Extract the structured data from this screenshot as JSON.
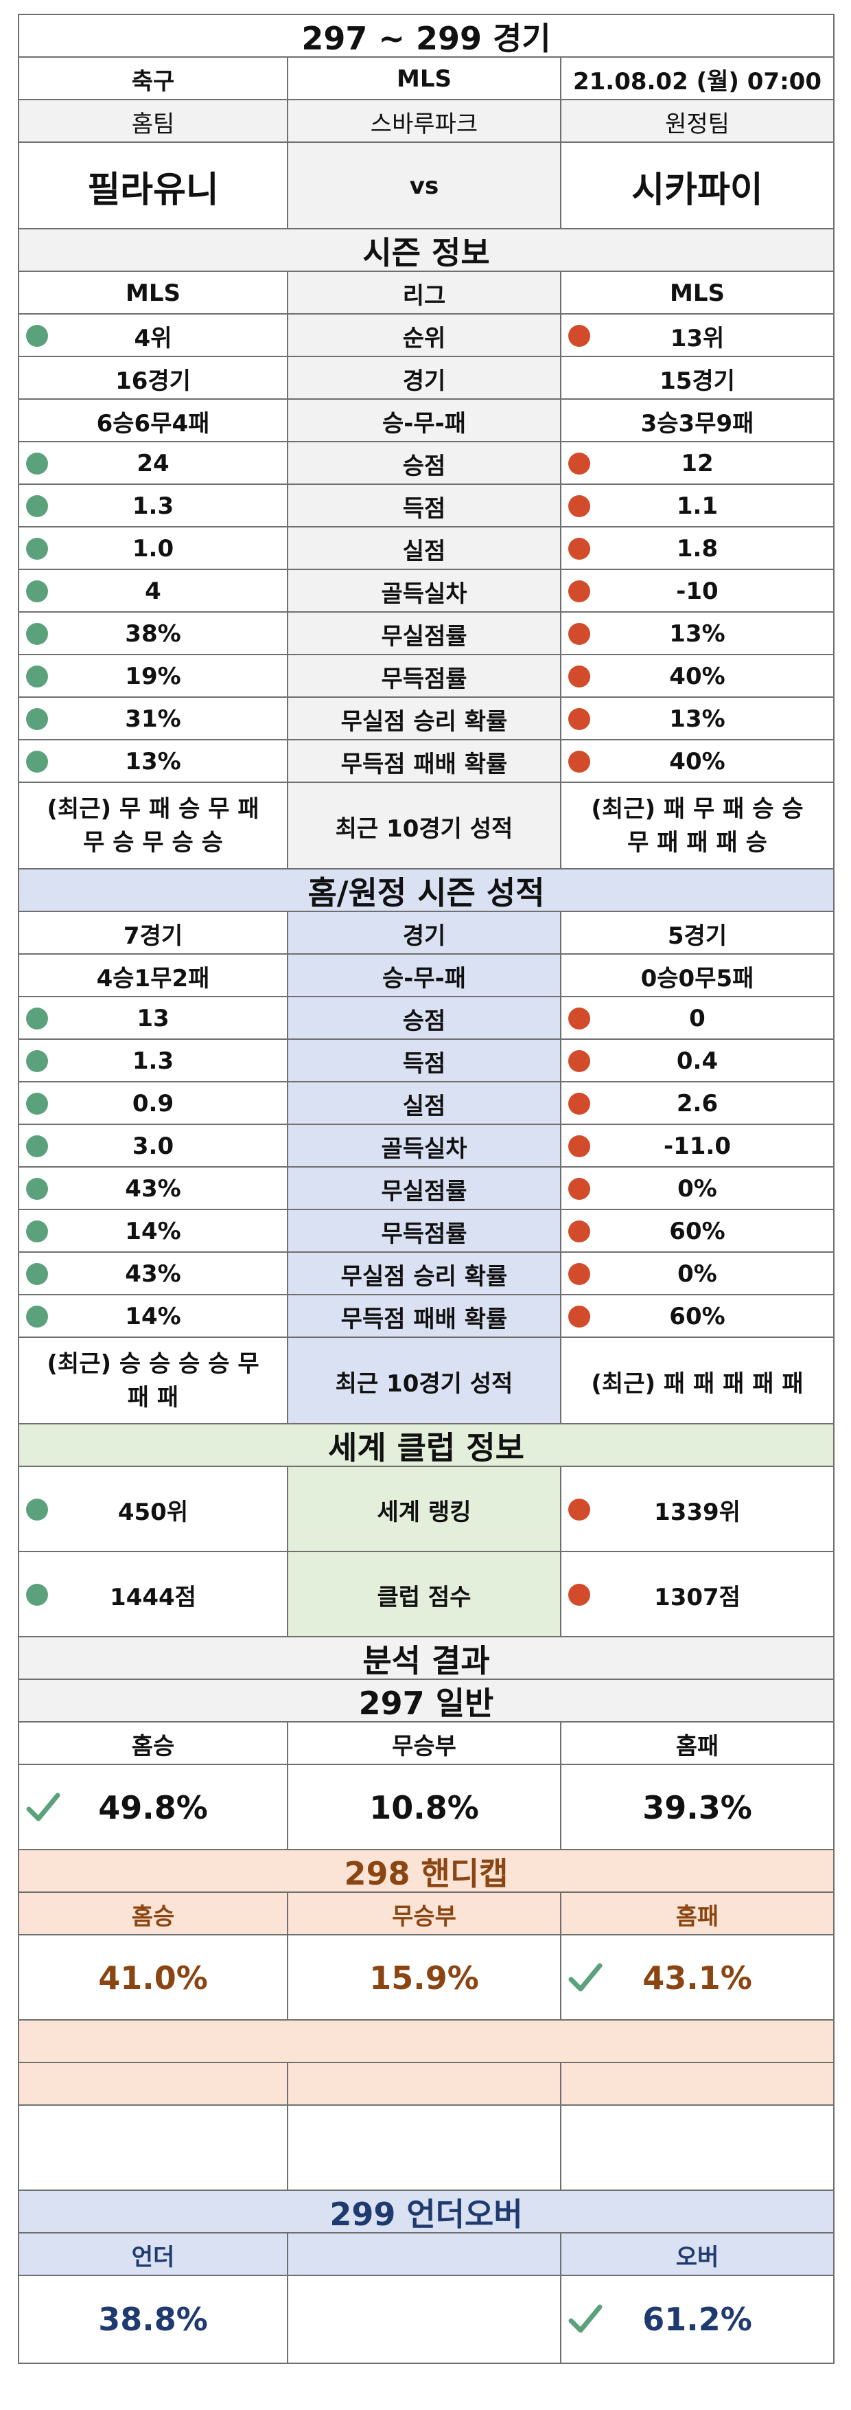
{
  "header": {
    "title": "297 ~ 299 경기",
    "sport": "축구",
    "league": "MLS",
    "datetime": "21.08.02 (월) 07:00",
    "home_label": "홈팀",
    "stadium": "스바루파크",
    "away_label": "원정팀",
    "home_team": "필라유니",
    "vs": "vs",
    "away_team": "시카파이"
  },
  "season": {
    "title": "시즌 정보",
    "rows": [
      {
        "home": "MLS",
        "label": "리그",
        "away": "MLS",
        "home_dot": "",
        "away_dot": ""
      },
      {
        "home": "4위",
        "label": "순위",
        "away": "13위",
        "home_dot": "green",
        "away_dot": "red"
      },
      {
        "home": "16경기",
        "label": "경기",
        "away": "15경기",
        "home_dot": "",
        "away_dot": ""
      },
      {
        "home": "6승6무4패",
        "label": "승-무-패",
        "away": "3승3무9패",
        "home_dot": "",
        "away_dot": ""
      },
      {
        "home": "24",
        "label": "승점",
        "away": "12",
        "home_dot": "green",
        "away_dot": "red"
      },
      {
        "home": "1.3",
        "label": "득점",
        "away": "1.1",
        "home_dot": "green",
        "away_dot": "red"
      },
      {
        "home": "1.0",
        "label": "실점",
        "away": "1.8",
        "home_dot": "green",
        "away_dot": "red"
      },
      {
        "home": "4",
        "label": "골득실차",
        "away": "-10",
        "home_dot": "green",
        "away_dot": "red"
      },
      {
        "home": "38%",
        "label": "무실점률",
        "away": "13%",
        "home_dot": "green",
        "away_dot": "red"
      },
      {
        "home": "19%",
        "label": "무득점률",
        "away": "40%",
        "home_dot": "green",
        "away_dot": "red"
      },
      {
        "home": "31%",
        "label": "무실점 승리 확률",
        "away": "13%",
        "home_dot": "green",
        "away_dot": "red"
      },
      {
        "home": "13%",
        "label": "무득점 패배 확률",
        "away": "40%",
        "home_dot": "green",
        "away_dot": "red"
      }
    ],
    "recent": {
      "home_line1": "(최근) 무 패 승 무 패",
      "home_line2": "무 승 무 승 승",
      "label": "최근 10경기 성적",
      "away_line1": "(최근) 패 무 패 승 승",
      "away_line2": "무 패 패 패 승"
    }
  },
  "home_away": {
    "title": "홈/원정 시즌 성적",
    "rows": [
      {
        "home": "7경기",
        "label": "경기",
        "away": "5경기",
        "home_dot": "",
        "away_dot": ""
      },
      {
        "home": "4승1무2패",
        "label": "승-무-패",
        "away": "0승0무5패",
        "home_dot": "",
        "away_dot": ""
      },
      {
        "home": "13",
        "label": "승점",
        "away": "0",
        "home_dot": "green",
        "away_dot": "red"
      },
      {
        "home": "1.3",
        "label": "득점",
        "away": "0.4",
        "home_dot": "green",
        "away_dot": "red"
      },
      {
        "home": "0.9",
        "label": "실점",
        "away": "2.6",
        "home_dot": "green",
        "away_dot": "red"
      },
      {
        "home": "3.0",
        "label": "골득실차",
        "away": "-11.0",
        "home_dot": "green",
        "away_dot": "red"
      },
      {
        "home": "43%",
        "label": "무실점률",
        "away": "0%",
        "home_dot": "green",
        "away_dot": "red"
      },
      {
        "home": "14%",
        "label": "무득점률",
        "away": "60%",
        "home_dot": "green",
        "away_dot": "red"
      },
      {
        "home": "43%",
        "label": "무실점 승리 확률",
        "away": "0%",
        "home_dot": "green",
        "away_dot": "red"
      },
      {
        "home": "14%",
        "label": "무득점 패배 확률",
        "away": "60%",
        "home_dot": "green",
        "away_dot": "red"
      }
    ],
    "recent": {
      "home_line1": "(최근) 승 승 승 승 무",
      "home_line2": "패 패",
      "label": "최근 10경기 성적",
      "away_line1": "(최근) 패 패 패 패 패",
      "away_line2": ""
    }
  },
  "world": {
    "title": "세계 클럽 정보",
    "rows": [
      {
        "home": "450위",
        "label": "세계 랭킹",
        "away": "1339위"
      },
      {
        "home": "1444점",
        "label": "클럽 점수",
        "away": "1307점"
      }
    ]
  },
  "analysis": {
    "title": "분석 결과",
    "general": {
      "title": "297 일반",
      "labels": [
        "홈승",
        "무승부",
        "홈패"
      ],
      "values": [
        "49.8%",
        "10.8%",
        "39.3%"
      ],
      "check_index": 0
    },
    "handicap": {
      "title": "298 핸디캡",
      "labels": [
        "홈승",
        "무승부",
        "홈패"
      ],
      "values": [
        "41.0%",
        "15.9%",
        "43.1%"
      ],
      "check_index": 2
    },
    "underover": {
      "title": "299 언더오버",
      "labels": [
        "언더",
        "",
        "오버"
      ],
      "values": [
        "38.8%",
        "",
        "61.2%"
      ],
      "check_index": 2
    }
  },
  "colors": {
    "green_dot": "#5ba27c",
    "red_dot": "#d24b2a",
    "gray_header": "#f2f2f2",
    "blue_header": "#dae1f2",
    "green_header": "#e3efdb",
    "peach_header": "#fbe4d5",
    "handicap_text": "#8a4512",
    "underover_text": "#1f3a6e"
  },
  "icons": {
    "check": "check-icon",
    "status_dot": "status-dot-icon"
  }
}
